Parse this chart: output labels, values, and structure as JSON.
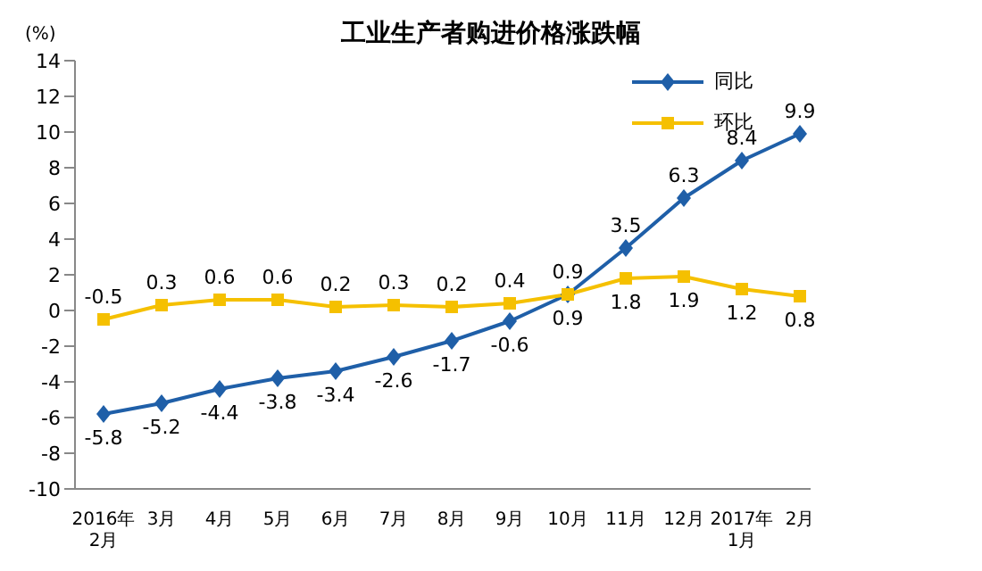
{
  "chart_data": {
    "type": "line",
    "title": "工业生产者购进价格涨跌幅",
    "ylabel": "(%)",
    "categories": [
      "2016年\n2月",
      "3月",
      "4月",
      "5月",
      "6月",
      "7月",
      "8月",
      "9月",
      "10月",
      "11月",
      "12月",
      "2017年\n1月",
      "2月"
    ],
    "series": [
      {
        "name": "同比",
        "color": "#1f5fa8",
        "marker": "diamond",
        "values": [
          -5.8,
          -5.2,
          -4.4,
          -3.8,
          -3.4,
          -2.6,
          -1.7,
          -0.6,
          0.9,
          3.5,
          6.3,
          8.4,
          9.9
        ]
      },
      {
        "name": "环比",
        "color": "#f5c000",
        "marker": "square",
        "values": [
          -0.5,
          0.3,
          0.6,
          0.6,
          0.2,
          0.3,
          0.2,
          0.4,
          0.9,
          1.8,
          1.9,
          1.2,
          0.8
        ]
      }
    ],
    "ylim": [
      -10,
      14
    ],
    "yticks": [
      -10,
      -8,
      -6,
      -4,
      -2,
      0,
      2,
      4,
      6,
      8,
      10,
      12,
      14
    ],
    "legend": "top right",
    "data_labels": true,
    "grid": false,
    "line_style": "solid"
  }
}
